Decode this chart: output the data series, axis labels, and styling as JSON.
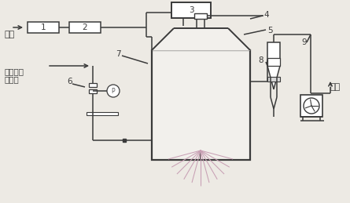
{
  "bg_color": "#edeae4",
  "line_color": "#3a3a3a",
  "box_fc": "#ffffff",
  "spray_color": "#c8a0b4",
  "chamber_fc": "#f2f0ec",
  "figsize": [
    4.45,
    2.59
  ],
  "dpi": 100,
  "numbers": [
    "1",
    "2",
    "3",
    "4",
    "5",
    "6",
    "7",
    "8",
    "9"
  ],
  "hot_wind": "热风",
  "liquid1": "脱硫废水",
  "liquid2": "浓缩液",
  "exhaust": "排气"
}
